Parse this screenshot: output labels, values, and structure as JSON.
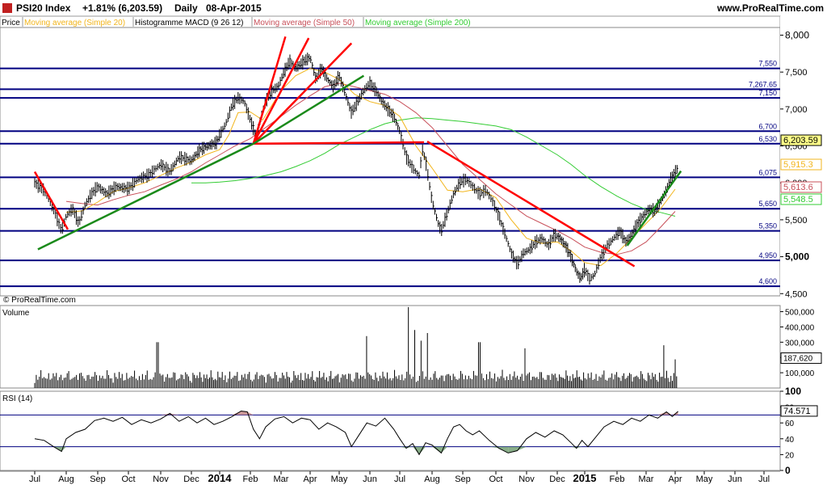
{
  "header": {
    "title": "PSI20 Index",
    "change": "+1.81% (6,203.59)",
    "period": "Daily",
    "date": "08-Apr-2015",
    "website": "www.ProRealTime.com"
  },
  "legend": [
    {
      "label": "Price",
      "color": "#000000"
    },
    {
      "label": "Moving average (Simple 20)",
      "color": "#f2b51c"
    },
    {
      "label": "Histogramme MACD (9 26 12)",
      "color": "#000000"
    },
    {
      "label": "Moving average (Simple 50)",
      "color": "#c8505a"
    },
    {
      "label": "Moving average (Simple 200)",
      "color": "#33cc33"
    }
  ],
  "watermark": "© ProRealTime.com",
  "colors": {
    "price": "#000000",
    "ma20": "#f2b51c",
    "ma50": "#c8505a",
    "ma200": "#33cc33",
    "level_line": "#000080",
    "red_trend": "#ff0000",
    "green_trend": "#1a8a1a",
    "rsi_line": "#000000",
    "rsi_over": "#c08080",
    "rsi_under": "#6a9a6a"
  },
  "chart_data": [
    {
      "type": "line",
      "name": "price",
      "x_ticks": [
        "Jul",
        "Aug",
        "Sep",
        "Oct",
        "Nov",
        "Dec",
        "2014",
        "Feb",
        "Mar",
        "Apr",
        "May",
        "Jun",
        "Jul",
        "Aug",
        "Sep",
        "Oct",
        "Nov",
        "Dec",
        "2015",
        "Feb",
        "Mar",
        "Apr",
        "May",
        "Jun",
        "Jul"
      ],
      "y_ticks": [
        "8,000",
        "7,500",
        "7,000",
        "6,500",
        "6,000",
        "5,500",
        "5,000",
        "4,500"
      ],
      "ylim": [
        4470,
        8060
      ],
      "levels": [
        {
          "value": 7550,
          "label": "7,550"
        },
        {
          "value": 7267.65,
          "label": "7,267.65"
        },
        {
          "value": 7150,
          "label": "7,150"
        },
        {
          "value": 6700,
          "label": "6,700"
        },
        {
          "value": 6530,
          "label": "6,530"
        },
        {
          "value": 6075,
          "label": "6,075"
        },
        {
          "value": 5650,
          "label": "5,650"
        },
        {
          "value": 5350,
          "label": "5,350"
        },
        {
          "value": 4950,
          "label": "4,950"
        },
        {
          "value": 4600,
          "label": "4,600"
        }
      ],
      "markers": [
        {
          "label": "6,203.59",
          "value": 6203.59,
          "series": "price"
        },
        {
          "label": "5,915.3",
          "value": 5915.3,
          "series": "ma20"
        },
        {
          "label": "5,613.6",
          "value": 5613.6,
          "series": "ma50"
        },
        {
          "label": "5,548.5",
          "value": 5548.5,
          "series": "ma200"
        }
      ],
      "price": [
        [
          0.0,
          6000
        ],
        [
          0.3,
          5900
        ],
        [
          0.6,
          5650
        ],
        [
          0.85,
          5350
        ],
        [
          1.0,
          5550
        ],
        [
          1.2,
          5650
        ],
        [
          1.4,
          5450
        ],
        [
          1.6,
          5700
        ],
        [
          1.8,
          5850
        ],
        [
          2.0,
          5950
        ],
        [
          2.3,
          5850
        ],
        [
          2.6,
          5950
        ],
        [
          3.0,
          5920
        ],
        [
          3.3,
          6050
        ],
        [
          3.6,
          6100
        ],
        [
          4.0,
          6250
        ],
        [
          4.3,
          6150
        ],
        [
          4.6,
          6350
        ],
        [
          5.0,
          6300
        ],
        [
          5.3,
          6450
        ],
        [
          5.6,
          6500
        ],
        [
          5.9,
          6550
        ],
        [
          6.0,
          6650
        ],
        [
          6.2,
          6800
        ],
        [
          6.4,
          7050
        ],
        [
          6.6,
          7150
        ],
        [
          6.8,
          7100
        ],
        [
          7.0,
          6850
        ],
        [
          7.2,
          6620
        ],
        [
          7.35,
          6900
        ],
        [
          7.5,
          7100
        ],
        [
          7.7,
          7250
        ],
        [
          7.9,
          7300
        ],
        [
          8.1,
          7500
        ],
        [
          8.3,
          7650
        ],
        [
          8.5,
          7550
        ],
        [
          8.8,
          7650
        ],
        [
          9.0,
          7700
        ],
        [
          9.2,
          7400
        ],
        [
          9.4,
          7550
        ],
        [
          9.6,
          7400
        ],
        [
          9.8,
          7300
        ],
        [
          10.0,
          7450
        ],
        [
          10.2,
          7200
        ],
        [
          10.4,
          6950
        ],
        [
          10.6,
          7100
        ],
        [
          10.8,
          7250
        ],
        [
          11.0,
          7350
        ],
        [
          11.2,
          7250
        ],
        [
          11.4,
          7100
        ],
        [
          11.6,
          7000
        ],
        [
          11.8,
          6900
        ],
        [
          12.0,
          6700
        ],
        [
          12.2,
          6350
        ],
        [
          12.4,
          6200
        ],
        [
          12.6,
          6100
        ],
        [
          12.7,
          6450
        ],
        [
          12.8,
          6300
        ],
        [
          13.0,
          5750
        ],
        [
          13.2,
          5450
        ],
        [
          13.3,
          5350
        ],
        [
          13.5,
          5600
        ],
        [
          13.7,
          5850
        ],
        [
          13.9,
          6000
        ],
        [
          14.1,
          6050
        ],
        [
          14.3,
          5950
        ],
        [
          14.5,
          5850
        ],
        [
          14.7,
          5900
        ],
        [
          14.9,
          5750
        ],
        [
          15.1,
          5550
        ],
        [
          15.3,
          5300
        ],
        [
          15.5,
          5050
        ],
        [
          15.7,
          4900
        ],
        [
          15.9,
          5050
        ],
        [
          16.1,
          5100
        ],
        [
          16.3,
          5200
        ],
        [
          16.5,
          5250
        ],
        [
          16.7,
          5150
        ],
        [
          16.9,
          5300
        ],
        [
          17.1,
          5250
        ],
        [
          17.3,
          5150
        ],
        [
          17.5,
          5000
        ],
        [
          17.7,
          4800
        ],
        [
          17.85,
          4700
        ],
        [
          18.0,
          4830
        ],
        [
          18.15,
          4700
        ],
        [
          18.3,
          4750
        ],
        [
          18.5,
          5000
        ],
        [
          18.7,
          5150
        ],
        [
          18.9,
          5250
        ],
        [
          19.1,
          5350
        ],
        [
          19.3,
          5200
        ],
        [
          19.5,
          5300
        ],
        [
          19.7,
          5450
        ],
        [
          19.9,
          5550
        ],
        [
          20.1,
          5650
        ],
        [
          20.3,
          5620
        ],
        [
          20.5,
          5750
        ],
        [
          20.7,
          5900
        ],
        [
          20.85,
          6050
        ],
        [
          21.0,
          6150
        ],
        [
          21.1,
          6203.59
        ]
      ],
      "ma20": [
        [
          1.0,
          5600
        ],
        [
          1.5,
          5620
        ],
        [
          2.0,
          5740
        ],
        [
          2.5,
          5880
        ],
        [
          3.0,
          5930
        ],
        [
          3.5,
          6000
        ],
        [
          4.0,
          6100
        ],
        [
          4.5,
          6200
        ],
        [
          5.0,
          6280
        ],
        [
          5.5,
          6380
        ],
        [
          6.0,
          6450
        ],
        [
          6.3,
          6650
        ],
        [
          6.6,
          6950
        ],
        [
          7.0,
          6960
        ],
        [
          7.4,
          6850
        ],
        [
          7.7,
          7050
        ],
        [
          8.0,
          7250
        ],
        [
          8.5,
          7450
        ],
        [
          9.0,
          7550
        ],
        [
          9.5,
          7500
        ],
        [
          10.0,
          7400
        ],
        [
          10.5,
          7200
        ],
        [
          11.0,
          7100
        ],
        [
          11.5,
          7050
        ],
        [
          12.0,
          6900
        ],
        [
          12.5,
          6500
        ],
        [
          13.0,
          6200
        ],
        [
          13.5,
          5900
        ],
        [
          14.0,
          5880
        ],
        [
          14.5,
          5920
        ],
        [
          15.0,
          5800
        ],
        [
          15.5,
          5500
        ],
        [
          16.0,
          5250
        ],
        [
          16.5,
          5180
        ],
        [
          17.0,
          5200
        ],
        [
          17.5,
          5080
        ],
        [
          18.0,
          4920
        ],
        [
          18.5,
          4880
        ],
        [
          19.0,
          5050
        ],
        [
          19.5,
          5250
        ],
        [
          20.0,
          5450
        ],
        [
          20.5,
          5650
        ],
        [
          21.0,
          5915.3
        ]
      ],
      "ma50": [
        [
          1.0,
          5750
        ],
        [
          1.5,
          5720
        ],
        [
          2.0,
          5700
        ],
        [
          2.5,
          5770
        ],
        [
          3.0,
          5830
        ],
        [
          3.5,
          5880
        ],
        [
          4.0,
          5970
        ],
        [
          4.5,
          6050
        ],
        [
          5.0,
          6150
        ],
        [
          5.5,
          6270
        ],
        [
          6.0,
          6380
        ],
        [
          6.5,
          6500
        ],
        [
          7.0,
          6600
        ],
        [
          7.5,
          6750
        ],
        [
          8.0,
          6900
        ],
        [
          8.5,
          7050
        ],
        [
          9.0,
          7180
        ],
        [
          9.5,
          7300
        ],
        [
          10.0,
          7350
        ],
        [
          10.5,
          7300
        ],
        [
          11.0,
          7250
        ],
        [
          11.5,
          7200
        ],
        [
          12.0,
          7100
        ],
        [
          12.5,
          6950
        ],
        [
          13.0,
          6750
        ],
        [
          13.5,
          6500
        ],
        [
          14.0,
          6250
        ],
        [
          14.5,
          6050
        ],
        [
          15.0,
          5850
        ],
        [
          15.5,
          5700
        ],
        [
          16.0,
          5550
        ],
        [
          16.5,
          5450
        ],
        [
          17.0,
          5350
        ],
        [
          17.5,
          5250
        ],
        [
          18.0,
          5130
        ],
        [
          18.5,
          5060
        ],
        [
          19.0,
          5030
        ],
        [
          19.5,
          5080
        ],
        [
          20.0,
          5200
        ],
        [
          20.5,
          5400
        ],
        [
          21.0,
          5613.6
        ]
      ],
      "ma200": [
        [
          5.0,
          6000
        ],
        [
          5.5,
          6000
        ],
        [
          6.0,
          6010
        ],
        [
          6.5,
          6030
        ],
        [
          7.0,
          6060
        ],
        [
          7.5,
          6100
        ],
        [
          8.0,
          6150
        ],
        [
          8.5,
          6220
        ],
        [
          9.0,
          6300
        ],
        [
          9.5,
          6400
        ],
        [
          10.0,
          6520
        ],
        [
          10.5,
          6620
        ],
        [
          11.0,
          6720
        ],
        [
          11.5,
          6800
        ],
        [
          12.0,
          6850
        ],
        [
          12.5,
          6880
        ],
        [
          13.0,
          6870
        ],
        [
          13.5,
          6850
        ],
        [
          14.0,
          6830
        ],
        [
          14.5,
          6800
        ],
        [
          15.0,
          6770
        ],
        [
          15.5,
          6720
        ],
        [
          16.0,
          6620
        ],
        [
          16.5,
          6500
        ],
        [
          17.0,
          6380
        ],
        [
          17.5,
          6250
        ],
        [
          18.0,
          6100
        ],
        [
          18.5,
          5950
        ],
        [
          19.0,
          5820
        ],
        [
          19.5,
          5720
        ],
        [
          20.0,
          5640
        ],
        [
          20.5,
          5600
        ],
        [
          21.0,
          5548.5
        ]
      ]
    },
    {
      "type": "bar",
      "name": "Volume",
      "y_ticks": [
        "500,000",
        "400,000",
        "300,000",
        "200,000",
        "100,000"
      ],
      "ylim": [
        0,
        540000
      ],
      "last_value": "187,620",
      "last": 187620,
      "bars_count": 430,
      "baseline": 95000,
      "spikes": [
        [
          3.9,
          300000
        ],
        [
          10.9,
          340000
        ],
        [
          12.25,
          530000
        ],
        [
          12.45,
          380000
        ],
        [
          12.65,
          310000
        ],
        [
          12.85,
          360000
        ],
        [
          14.5,
          300000
        ],
        [
          15.95,
          260000
        ],
        [
          20.6,
          280000
        ],
        [
          21.0,
          187620
        ]
      ]
    },
    {
      "type": "line",
      "name": "RSI (14)",
      "y_ticks": [
        "100",
        "80",
        "60",
        "40",
        "20",
        "0"
      ],
      "ylim": [
        0,
        100
      ],
      "levels": [
        70,
        30
      ],
      "last_value": "74.571",
      "last": 74.571,
      "rsi": [
        [
          0.0,
          40
        ],
        [
          0.3,
          38
        ],
        [
          0.6,
          30
        ],
        [
          0.85,
          24
        ],
        [
          1.0,
          40
        ],
        [
          1.3,
          48
        ],
        [
          1.6,
          52
        ],
        [
          1.9,
          63
        ],
        [
          2.2,
          66
        ],
        [
          2.5,
          62
        ],
        [
          2.8,
          67
        ],
        [
          3.1,
          58
        ],
        [
          3.4,
          64
        ],
        [
          3.7,
          60
        ],
        [
          4.0,
          65
        ],
        [
          4.3,
          72
        ],
        [
          4.6,
          62
        ],
        [
          4.9,
          68
        ],
        [
          5.2,
          60
        ],
        [
          5.5,
          66
        ],
        [
          5.8,
          58
        ],
        [
          6.1,
          62
        ],
        [
          6.4,
          68
        ],
        [
          6.7,
          75
        ],
        [
          6.9,
          74
        ],
        [
          7.1,
          52
        ],
        [
          7.3,
          40
        ],
        [
          7.5,
          55
        ],
        [
          7.8,
          65
        ],
        [
          8.1,
          68
        ],
        [
          8.4,
          60
        ],
        [
          8.7,
          66
        ],
        [
          9.0,
          64
        ],
        [
          9.3,
          52
        ],
        [
          9.6,
          60
        ],
        [
          9.9,
          55
        ],
        [
          10.2,
          48
        ],
        [
          10.4,
          30
        ],
        [
          10.6,
          42
        ],
        [
          10.9,
          60
        ],
        [
          11.2,
          56
        ],
        [
          11.5,
          66
        ],
        [
          11.8,
          52
        ],
        [
          12.0,
          40
        ],
        [
          12.2,
          28
        ],
        [
          12.4,
          34
        ],
        [
          12.6,
          20
        ],
        [
          12.8,
          35
        ],
        [
          13.0,
          32
        ],
        [
          13.3,
          22
        ],
        [
          13.5,
          40
        ],
        [
          13.7,
          55
        ],
        [
          13.9,
          58
        ],
        [
          14.1,
          50
        ],
        [
          14.3,
          45
        ],
        [
          14.5,
          50
        ],
        [
          14.8,
          38
        ],
        [
          15.1,
          28
        ],
        [
          15.4,
          22
        ],
        [
          15.7,
          25
        ],
        [
          16.0,
          40
        ],
        [
          16.3,
          48
        ],
        [
          16.6,
          42
        ],
        [
          16.9,
          50
        ],
        [
          17.2,
          45
        ],
        [
          17.5,
          35
        ],
        [
          17.7,
          28
        ],
        [
          17.9,
          38
        ],
        [
          18.1,
          30
        ],
        [
          18.3,
          40
        ],
        [
          18.6,
          55
        ],
        [
          18.9,
          62
        ],
        [
          19.2,
          58
        ],
        [
          19.5,
          66
        ],
        [
          19.8,
          62
        ],
        [
          20.1,
          70
        ],
        [
          20.4,
          66
        ],
        [
          20.7,
          74
        ],
        [
          20.9,
          68
        ],
        [
          21.1,
          74.571
        ]
      ]
    }
  ]
}
